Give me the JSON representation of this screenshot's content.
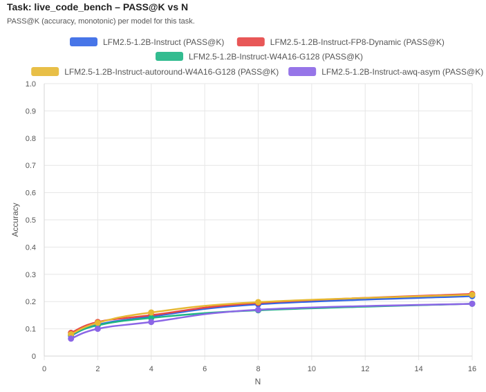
{
  "header": {
    "title": "Task: live_code_bench – PASS@K vs N",
    "subtitle": "PASS@K (accuracy, monotonic) per model for this task."
  },
  "chart_data": {
    "type": "line",
    "xlabel": "N",
    "ylabel": "Accuracy",
    "xlim": [
      0,
      16
    ],
    "ylim": [
      0,
      1.0
    ],
    "x_ticks": [
      "0",
      "2",
      "4",
      "6",
      "8",
      "10",
      "12",
      "14",
      "16"
    ],
    "y_ticks": [
      "0",
      "0.1",
      "0.2",
      "0.3",
      "0.4",
      "0.5",
      "0.6",
      "0.7",
      "0.8",
      "0.9",
      "1.0"
    ],
    "grid": true,
    "legend_position": "top",
    "x": [
      1,
      2,
      4,
      8,
      16
    ],
    "series": [
      {
        "name": "LFM2.5-1.2B-Instruct (PASS@K)",
        "color": "#3366e6",
        "values": [
          0.075,
          0.115,
          0.145,
          0.19,
          0.22
        ]
      },
      {
        "name": "LFM2.5-1.2B-Instruct-FP8-Dynamic (PASS@K)",
        "color": "#e64545",
        "values": [
          0.085,
          0.125,
          0.15,
          0.195,
          0.228
        ]
      },
      {
        "name": "LFM2.5-1.2B-Instruct-W4A16-G128 (PASS@K)",
        "color": "#1db584",
        "values": [
          0.078,
          0.113,
          0.14,
          0.168,
          0.192
        ]
      },
      {
        "name": "LFM2.5-1.2B-Instruct-autoround-W4A16-G128 (PASS@K)",
        "color": "#e6b833",
        "values": [
          0.08,
          0.122,
          0.16,
          0.198,
          0.225
        ]
      },
      {
        "name": "LFM2.5-1.2B-Instruct-awq-asym (PASS@K)",
        "color": "#8b66e6",
        "values": [
          0.064,
          0.1,
          0.125,
          0.17,
          0.192
        ]
      }
    ]
  }
}
